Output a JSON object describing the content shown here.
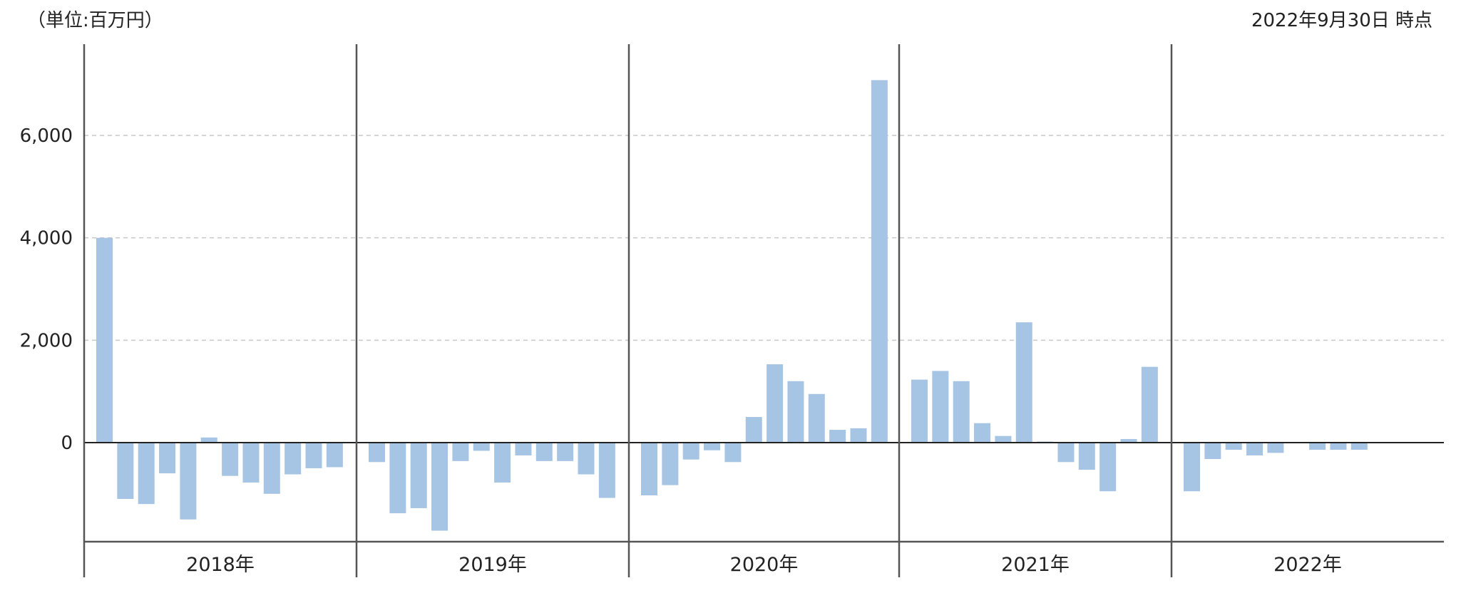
{
  "header": {
    "unit_label": "（単位:百万円）",
    "as_of": "2022年9月30日 時点"
  },
  "colors": {
    "bar": "#a6c4e3",
    "axis": "#555555",
    "grid": "#c8c8c8",
    "zero_line": "#222222"
  },
  "chart_data": {
    "type": "bar",
    "title": "",
    "xlabel": "",
    "ylabel": "",
    "ylim": [
      -1900,
      7100
    ],
    "yticks": [
      0,
      2000,
      4000,
      6000
    ],
    "ytick_labels": [
      "0",
      "2,000",
      "4,000",
      "6,000"
    ],
    "grid": true,
    "years": [
      {
        "label": "2018年",
        "values": [
          4000,
          -1100,
          -1200,
          -600,
          -1500,
          100,
          -650,
          -780,
          -1000,
          -620,
          -500,
          -480
        ]
      },
      {
        "label": "2019年",
        "values": [
          -380,
          -1380,
          -1280,
          -1720,
          -360,
          -160,
          -780,
          -250,
          -360,
          -360,
          -620,
          -1080
        ]
      },
      {
        "label": "2020年",
        "values": [
          -1030,
          -830,
          -330,
          -150,
          -380,
          500,
          1530,
          1200,
          950,
          250,
          280,
          7080
        ]
      },
      {
        "label": "2021年",
        "values": [
          1230,
          1400,
          1200,
          380,
          130,
          2350,
          20,
          -380,
          -530,
          -950,
          70,
          1480
        ]
      },
      {
        "label": "2022年",
        "values": [
          -950,
          -320,
          -140,
          -250,
          -200,
          0,
          -140,
          -140,
          -140
        ]
      }
    ]
  }
}
